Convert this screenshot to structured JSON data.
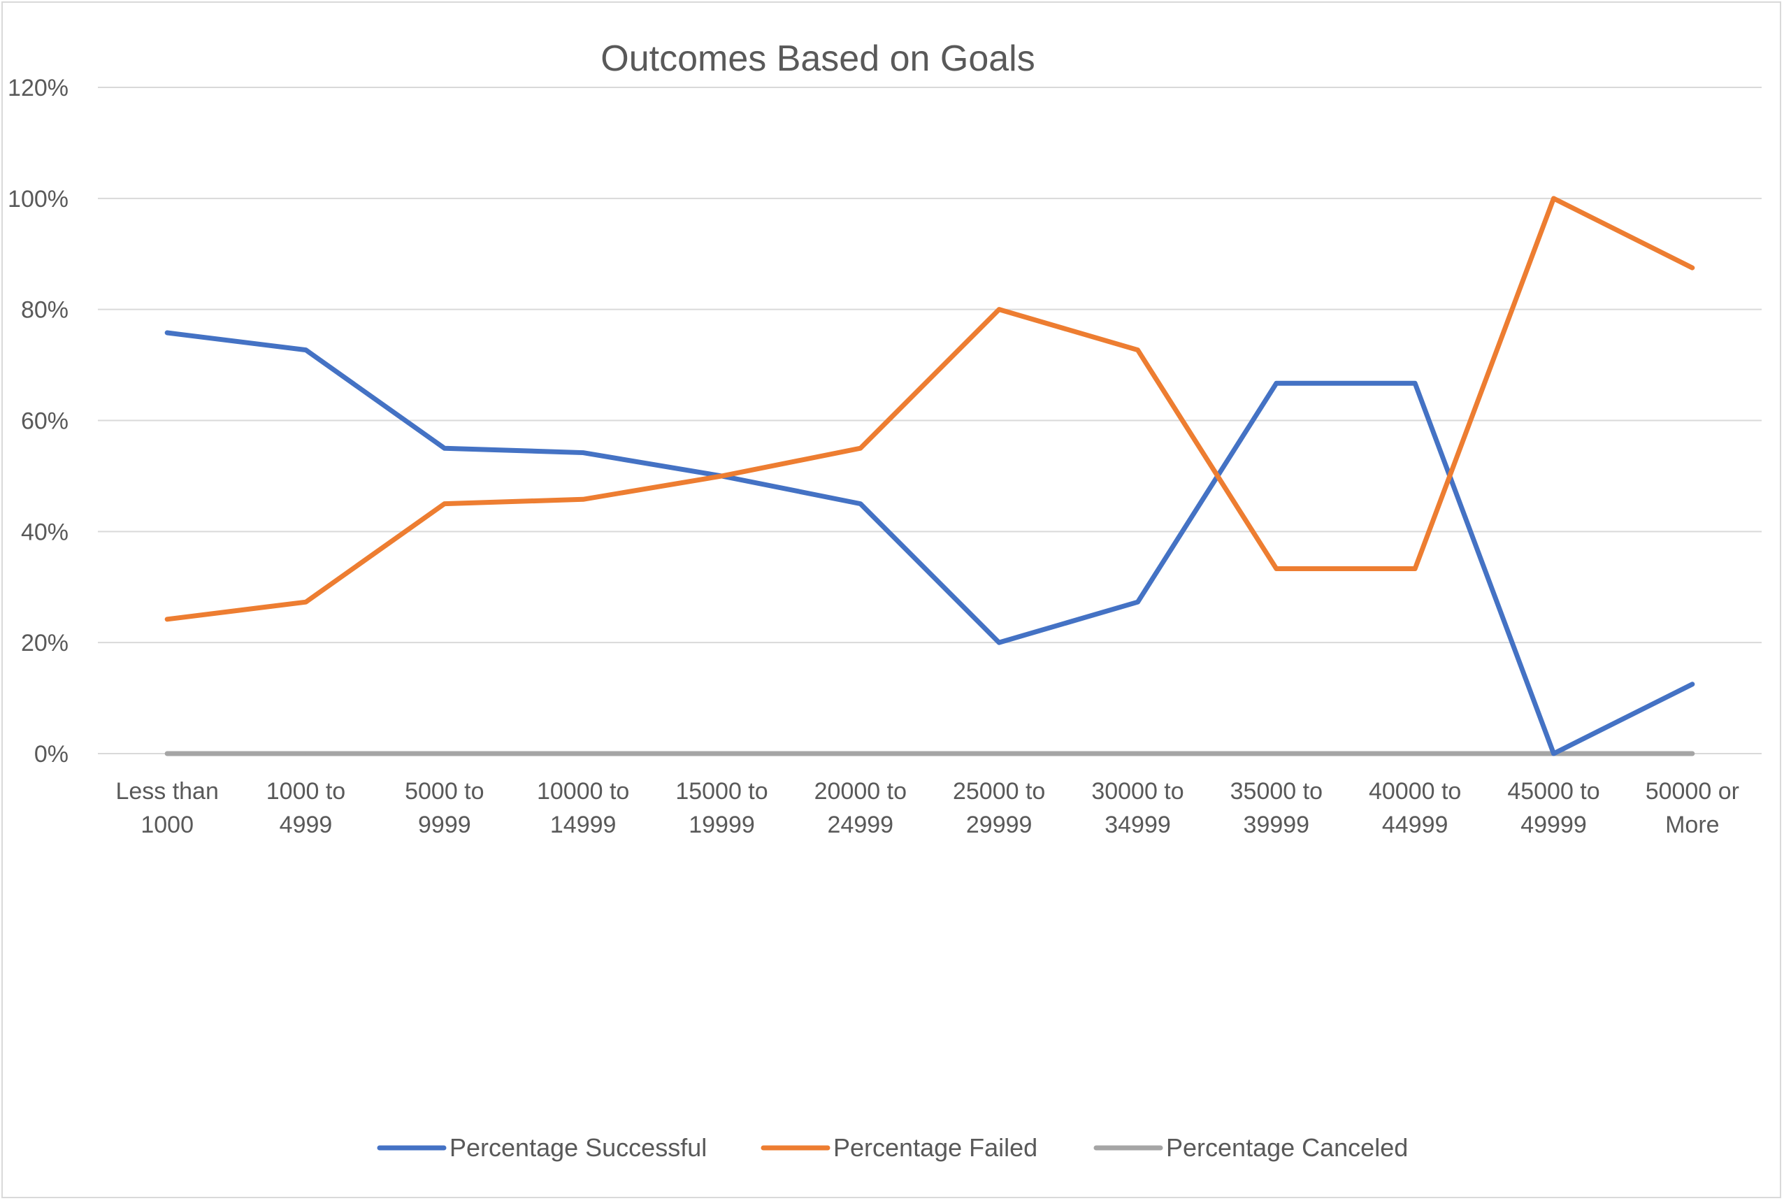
{
  "chart_data": {
    "type": "line",
    "title": "Outcomes Based on Goals",
    "xlabel": "",
    "ylabel": "",
    "categories": [
      [
        "Less than",
        "1000"
      ],
      [
        "1000 to",
        "4999"
      ],
      [
        "5000 to",
        "9999"
      ],
      [
        "10000 to",
        "14999"
      ],
      [
        "15000 to",
        "19999"
      ],
      [
        "20000 to",
        "24999"
      ],
      [
        "25000 to",
        "29999"
      ],
      [
        "30000 to",
        "34999"
      ],
      [
        "35000 to",
        "39999"
      ],
      [
        "40000 to",
        "44999"
      ],
      [
        "45000 to",
        "49999"
      ],
      [
        "50000 or",
        "More"
      ]
    ],
    "ylim": [
      0,
      120
    ],
    "yticks": [
      0,
      20,
      40,
      60,
      80,
      100,
      120
    ],
    "ytick_labels": [
      "0%",
      "20%",
      "40%",
      "60%",
      "80%",
      "100%",
      "120%"
    ],
    "grid": true,
    "legend_position": "bottom",
    "series": [
      {
        "name": "Percentage Successful",
        "color": "#4472c4",
        "values": [
          75.8,
          72.7,
          55.0,
          54.2,
          50.0,
          45.0,
          20.0,
          27.3,
          66.7,
          66.7,
          0.0,
          12.5
        ]
      },
      {
        "name": "Percentage Failed",
        "color": "#ed7d31",
        "values": [
          24.2,
          27.3,
          45.0,
          45.8,
          50.0,
          55.0,
          80.0,
          72.7,
          33.3,
          33.3,
          100.0,
          87.5
        ]
      },
      {
        "name": "Percentage Canceled",
        "color": "#a5a5a5",
        "values": [
          0,
          0,
          0,
          0,
          0,
          0,
          0,
          0,
          0,
          0,
          0,
          0
        ]
      }
    ]
  }
}
